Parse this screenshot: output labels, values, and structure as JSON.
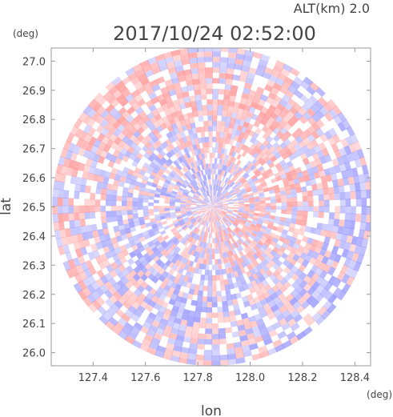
{
  "chart_data": {
    "type": "heatmap",
    "title": "2017/10/24 02:52:00",
    "subtitle": "ALT(km) 2.0",
    "xlabel": "lon",
    "ylabel": "lat",
    "x_unit": "(deg)",
    "y_unit": "(deg)",
    "xlim": [
      127.24,
      128.46
    ],
    "ylim": [
      25.955,
      27.045
    ],
    "x_ticks": [
      "127.4",
      "127.6",
      "127.8",
      "128.0",
      "128.2",
      "128.4"
    ],
    "y_ticks": [
      "26.0",
      "26.1",
      "26.2",
      "26.3",
      "26.4",
      "26.5",
      "26.6",
      "26.7",
      "26.8",
      "26.9",
      "27.0"
    ],
    "x_tick_values": [
      127.4,
      127.6,
      127.8,
      128.0,
      128.2,
      128.4
    ],
    "y_tick_values": [
      26.0,
      26.1,
      26.2,
      26.3,
      26.4,
      26.5,
      26.6,
      26.7,
      26.8,
      26.9,
      27.0
    ],
    "radar_center": {
      "lon": 127.855,
      "lat": 26.503
    },
    "grid": false,
    "legend": "none",
    "colors": {
      "positive": "#ff8c8c",
      "negative": "#8c8cff",
      "neutral": "#ffffff",
      "axis": "#999999",
      "text": "#444444"
    }
  }
}
